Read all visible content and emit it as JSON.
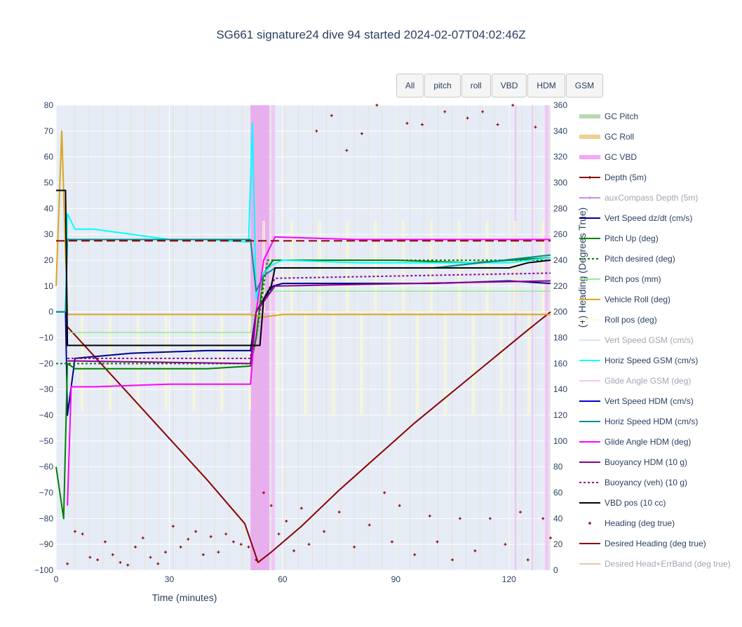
{
  "title": "SG661 signature24 dive 94 started 2024-02-07T04:02:46Z",
  "buttons": [
    "All",
    "pitch",
    "roll",
    "VBD",
    "HDM",
    "GSM"
  ],
  "chart_data": {
    "type": "line",
    "xlabel": "Time (minutes)",
    "ylabel": "",
    "y2label": "(+) Heading (Degrees True)",
    "xlim": [
      0,
      131
    ],
    "ylim": [
      -100,
      80
    ],
    "y2lim": [
      0,
      360
    ],
    "x_ticks": [
      0,
      30,
      60,
      90,
      120
    ],
    "y_ticks": [
      80,
      70,
      60,
      50,
      40,
      30,
      20,
      10,
      0,
      -10,
      -20,
      -30,
      -40,
      -50,
      -60,
      -70,
      -80,
      -90,
      -100
    ],
    "y2_ticks": [
      360,
      340,
      320,
      300,
      280,
      260,
      240,
      220,
      200,
      180,
      160,
      140,
      120,
      100,
      80,
      60,
      40,
      20,
      0
    ],
    "bands": [
      {
        "name": "GC VBD",
        "x0": 51.5,
        "x1": 56.5,
        "color": "#e9a7f0"
      },
      {
        "name": "GC VBD",
        "x0": 57,
        "x1": 58,
        "color": "#f1c3f5"
      },
      {
        "name": "GC VBD",
        "x0": 121.5,
        "x1": 122,
        "color": "#f1c3f5"
      },
      {
        "name": "GC VBD",
        "x0": 126,
        "x1": 126.4,
        "color": "#f1c3f5"
      },
      {
        "name": "GC VBD",
        "x0": 129.5,
        "x1": 130.5,
        "color": "#f1c3f5"
      }
    ],
    "series": [
      {
        "name": "Depth (5m)",
        "color": "#8b0000",
        "axis": "y",
        "x": [
          2.5,
          10,
          20,
          30,
          40,
          50,
          53.5,
          57,
          65,
          75,
          85,
          95,
          105,
          115,
          125,
          131
        ],
        "y": [
          -5,
          -17,
          -33,
          -49,
          -65,
          -82,
          -97,
          -93,
          -83,
          -69,
          -56,
          -43,
          -31,
          -19,
          -7,
          0
        ]
      },
      {
        "name": "Vert Speed dz/dt (cm/s)",
        "color": "#00008b",
        "axis": "y",
        "x": [
          0,
          2.5,
          3,
          5,
          20,
          40,
          51.5,
          53,
          55,
          57.5,
          60,
          80,
          100,
          120,
          131
        ],
        "y": [
          0,
          0,
          -40,
          -18,
          -16,
          -15,
          -15,
          0,
          5,
          10,
          11,
          11,
          11,
          12,
          11
        ]
      },
      {
        "name": "Pitch Up (deg)",
        "color": "#008000",
        "axis": "y",
        "x": [
          0,
          2,
          3,
          5,
          20,
          40,
          51.5,
          53,
          55,
          57.5,
          70,
          90,
          110,
          131
        ],
        "y": [
          -60,
          -80,
          -20,
          -22,
          -22,
          -22,
          -21,
          -10,
          15,
          20,
          20,
          20,
          19,
          21
        ]
      },
      {
        "name": "Pitch desired (deg)",
        "color": "#008000",
        "axis": "y",
        "x": [
          0,
          3,
          50,
          51.5,
          53,
          56,
          58,
          131
        ],
        "y": [
          -20,
          -20,
          -20,
          -20,
          -10,
          20,
          20,
          20
        ]
      },
      {
        "name": "Pitch pos (mm)",
        "color": "#90ee90",
        "axis": "y",
        "x": [
          3,
          51.5,
          53.5,
          131
        ],
        "y": [
          -8,
          -8,
          8,
          8
        ]
      },
      {
        "name": "Vehicle Roll (deg)",
        "color": "#daa520",
        "axis": "y",
        "x": [
          0,
          1.5,
          3,
          10,
          30,
          51.5,
          55,
          60,
          90,
          131
        ],
        "y": [
          10,
          70,
          -1,
          -1,
          -1,
          -1,
          -2,
          -1,
          -1,
          -1
        ]
      },
      {
        "name": "Horiz Speed GSM (cm/s)",
        "color": "#00ffff",
        "axis": "y",
        "x": [
          0,
          2.5,
          3,
          5,
          10,
          20,
          30,
          40,
          51,
          52,
          53,
          55,
          57,
          60,
          80,
          100,
          120,
          131
        ],
        "y": [
          0,
          0,
          38,
          32,
          32,
          30,
          28,
          28,
          27,
          73,
          5,
          15,
          18,
          20,
          19,
          19,
          19,
          21
        ]
      },
      {
        "name": "Horiz Speed HDM (cm/s)",
        "color": "#008b8b",
        "axis": "y",
        "x": [
          0,
          2.5,
          3,
          5,
          51.5,
          53,
          55,
          58,
          80,
          100,
          131
        ],
        "y": [
          0,
          0,
          28,
          28,
          28,
          8,
          14,
          17,
          17,
          17,
          22
        ]
      },
      {
        "name": "Glide Angle HDM (deg)",
        "color": "#ff00ff",
        "axis": "y",
        "x": [
          3,
          4,
          10,
          30,
          51.5,
          53,
          55,
          58,
          80,
          100,
          120,
          131
        ],
        "y": [
          -75,
          -29,
          -29,
          -28,
          -28,
          0,
          20,
          29,
          28,
          28,
          28,
          28
        ]
      },
      {
        "name": "Buoyancy HDM (10 g)",
        "color": "#8b008b",
        "axis": "y",
        "x": [
          3,
          5,
          51.5,
          53,
          58,
          131
        ],
        "y": [
          -19,
          -19,
          -20,
          0,
          10,
          12
        ]
      },
      {
        "name": "Buoyancy (veh) (10 g)",
        "color": "#8b008b",
        "axis": "y",
        "x": [
          3,
          51.5,
          53,
          58,
          131
        ],
        "y": [
          -18,
          -18,
          0,
          13,
          15
        ]
      },
      {
        "name": "VBD pos (10 cc)",
        "color": "#000000",
        "axis": "y",
        "x": [
          0,
          2.5,
          3,
          51.5,
          54,
          55,
          57,
          58,
          120,
          125,
          131
        ],
        "y": [
          47,
          47,
          -13,
          -13,
          -13,
          5,
          10,
          17,
          17,
          19,
          20
        ]
      },
      {
        "name": "Desired Heading (deg true)",
        "color": "#8b0000",
        "axis": "y2",
        "x": [
          0,
          131
        ],
        "y": [
          255,
          255
        ]
      }
    ],
    "heading_points": {
      "name": "Heading (deg true)",
      "color": "#8b0000",
      "axis": "y2",
      "x": [
        3,
        5,
        7,
        9,
        11,
        13,
        15,
        17,
        19,
        21,
        23,
        25,
        27,
        29,
        31,
        33,
        35,
        37,
        39,
        41,
        43,
        45,
        47,
        49,
        51,
        53,
        55,
        57,
        59,
        61,
        63,
        65,
        67,
        69,
        71,
        73,
        75,
        77,
        79,
        81,
        83,
        85,
        87,
        89,
        91,
        93,
        95,
        97,
        99,
        101,
        103,
        105,
        107,
        109,
        111,
        113,
        115,
        117,
        119,
        121,
        123,
        125,
        127,
        129,
        131
      ],
      "y": [
        5,
        30,
        28,
        10,
        8,
        22,
        12,
        6,
        4,
        18,
        25,
        10,
        5,
        14,
        34,
        18,
        24,
        30,
        12,
        26,
        14,
        28,
        22,
        20,
        18,
        8,
        60,
        50,
        28,
        38,
        15,
        48,
        20,
        340,
        30,
        352,
        45,
        325,
        18,
        338,
        35,
        360,
        60,
        22,
        50,
        346,
        12,
        345,
        42,
        22,
        355,
        8,
        40,
        350,
        15,
        355,
        40,
        345,
        20,
        360,
        45,
        8,
        343,
        40,
        25
      ]
    }
  },
  "legend": [
    {
      "label": "GC Pitch",
      "color": "#bad9b2",
      "style": "band",
      "off": false
    },
    {
      "label": "GC Roll",
      "color": "#eecf92",
      "style": "band",
      "off": false
    },
    {
      "label": "GC VBD",
      "color": "#f6a4f9",
      "style": "band",
      "off": false
    },
    {
      "label": "Depth (5m)",
      "color": "#8b0000",
      "style": "line-marker",
      "off": false
    },
    {
      "label": "auxCompass Depth (5m)",
      "color": "#c78ee8",
      "style": "line-marker",
      "off": true
    },
    {
      "label": "Vert Speed dz/dt (cm/s)",
      "color": "#00008b",
      "style": "line",
      "off": false
    },
    {
      "label": "Pitch Up (deg)",
      "color": "#008000",
      "style": "line",
      "off": false
    },
    {
      "label": "Pitch desired (deg)",
      "color": "#008000",
      "style": "dot",
      "off": false
    },
    {
      "label": "Pitch pos (mm)",
      "color": "#90ee90",
      "style": "line",
      "off": false
    },
    {
      "label": "Vehicle Roll (deg)",
      "color": "#daa520",
      "style": "line",
      "off": false
    },
    {
      "label": "Roll pos (deg)",
      "color": "#fffacd",
      "style": "line",
      "off": false
    },
    {
      "label": "Vert Speed GSM (cm/s)",
      "color": "#d6e6f5",
      "style": "line",
      "off": true
    },
    {
      "label": "Horiz Speed GSM (cm/s)",
      "color": "#00ffff",
      "style": "line",
      "off": false
    },
    {
      "label": "Glide Angle GSM (deg)",
      "color": "#f5c4ec",
      "style": "line",
      "off": true
    },
    {
      "label": "Vert Speed HDM (cm/s)",
      "color": "#0000cd",
      "style": "line",
      "off": false
    },
    {
      "label": "Horiz Speed HDM (cm/s)",
      "color": "#008b8b",
      "style": "line",
      "off": false
    },
    {
      "label": "Glide Angle HDM (deg)",
      "color": "#ff00ff",
      "style": "line",
      "off": false
    },
    {
      "label": "Buoyancy HDM (10 g)",
      "color": "#8b008b",
      "style": "line",
      "off": false
    },
    {
      "label": "Buoyancy (veh) (10 g)",
      "color": "#8b008b",
      "style": "dot",
      "off": false
    },
    {
      "label": "VBD pos (10 cc)",
      "color": "#000000",
      "style": "line",
      "off": false
    },
    {
      "label": "Heading (deg true)",
      "color": "#8b0000",
      "style": "marker",
      "off": false
    },
    {
      "label": "Desired Heading (deg true)",
      "color": "#8b0000",
      "style": "line",
      "off": false
    },
    {
      "label": "Desired Head+ErrBand (deg true)",
      "color": "#f0c4a8",
      "style": "line",
      "off": true
    }
  ]
}
